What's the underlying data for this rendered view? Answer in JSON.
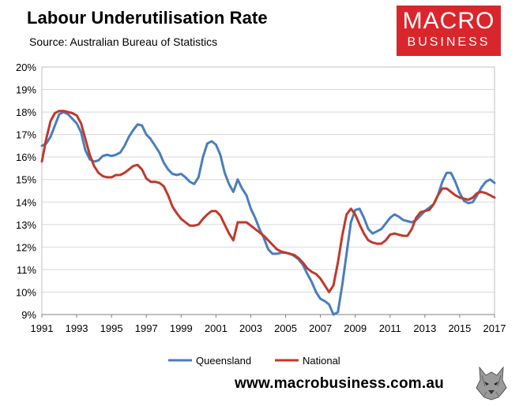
{
  "header": {
    "title": "Labour Underutilisation Rate",
    "source": "Source: Australian Bureau of Statistics"
  },
  "logo": {
    "line1": "MACRO",
    "line2": "BUSINESS",
    "color": "#d9262c"
  },
  "footer": {
    "url": "www.macrobusiness.com.au",
    "mascot_icon": "wolf-icon"
  },
  "chart_data": {
    "type": "line",
    "title": "Labour Underutilisation Rate",
    "xlabel": "",
    "ylabel": "",
    "xlim": [
      1991,
      2017
    ],
    "ylim": [
      9,
      20
    ],
    "y_ticks": [
      "9%",
      "10%",
      "11%",
      "12%",
      "13%",
      "14%",
      "15%",
      "16%",
      "17%",
      "18%",
      "19%",
      "20%"
    ],
    "x_ticks": [
      "1991",
      "1993",
      "1995",
      "1997",
      "1999",
      "2001",
      "2003",
      "2005",
      "2007",
      "2009",
      "2011",
      "2013",
      "2015",
      "2017"
    ],
    "grid": "horizontal",
    "legend": "bottom",
    "series": [
      {
        "name": "Queensland",
        "color": "#4a7ebb",
        "points": [
          [
            1991.0,
            16.5
          ],
          [
            1991.25,
            16.6
          ],
          [
            1991.5,
            16.9
          ],
          [
            1991.75,
            17.4
          ],
          [
            1992.0,
            17.9
          ],
          [
            1992.25,
            18.0
          ],
          [
            1992.5,
            17.9
          ],
          [
            1992.75,
            17.7
          ],
          [
            1993.0,
            17.5
          ],
          [
            1993.25,
            17.1
          ],
          [
            1993.5,
            16.3
          ],
          [
            1993.75,
            15.9
          ],
          [
            1994.0,
            15.8
          ],
          [
            1994.25,
            15.85
          ],
          [
            1994.5,
            16.05
          ],
          [
            1994.75,
            16.1
          ],
          [
            1995.0,
            16.05
          ],
          [
            1995.25,
            16.1
          ],
          [
            1995.5,
            16.2
          ],
          [
            1995.75,
            16.5
          ],
          [
            1996.0,
            16.9
          ],
          [
            1996.25,
            17.2
          ],
          [
            1996.5,
            17.45
          ],
          [
            1996.75,
            17.4
          ],
          [
            1997.0,
            17.0
          ],
          [
            1997.25,
            16.8
          ],
          [
            1997.5,
            16.5
          ],
          [
            1997.75,
            16.2
          ],
          [
            1998.0,
            15.75
          ],
          [
            1998.25,
            15.45
          ],
          [
            1998.5,
            15.25
          ],
          [
            1998.75,
            15.2
          ],
          [
            1999.0,
            15.25
          ],
          [
            1999.25,
            15.1
          ],
          [
            1999.5,
            14.9
          ],
          [
            1999.75,
            14.8
          ],
          [
            2000.0,
            15.1
          ],
          [
            2000.25,
            16.0
          ],
          [
            2000.5,
            16.6
          ],
          [
            2000.75,
            16.7
          ],
          [
            2001.0,
            16.55
          ],
          [
            2001.25,
            16.1
          ],
          [
            2001.5,
            15.3
          ],
          [
            2001.75,
            14.8
          ],
          [
            2002.0,
            14.45
          ],
          [
            2002.25,
            15.0
          ],
          [
            2002.5,
            14.6
          ],
          [
            2002.75,
            14.3
          ],
          [
            2003.0,
            13.7
          ],
          [
            2003.25,
            13.3
          ],
          [
            2003.5,
            12.8
          ],
          [
            2003.75,
            12.4
          ],
          [
            2004.0,
            11.9
          ],
          [
            2004.25,
            11.7
          ],
          [
            2004.5,
            11.7
          ],
          [
            2004.75,
            11.75
          ],
          [
            2005.0,
            11.75
          ],
          [
            2005.25,
            11.7
          ],
          [
            2005.5,
            11.6
          ],
          [
            2005.75,
            11.45
          ],
          [
            2006.0,
            11.2
          ],
          [
            2006.25,
            10.8
          ],
          [
            2006.5,
            10.45
          ],
          [
            2006.75,
            10.0
          ],
          [
            2007.0,
            9.7
          ],
          [
            2007.25,
            9.6
          ],
          [
            2007.5,
            9.45
          ],
          [
            2007.75,
            9.0
          ],
          [
            2008.0,
            9.1
          ],
          [
            2008.25,
            10.3
          ],
          [
            2008.5,
            11.7
          ],
          [
            2008.75,
            13.1
          ],
          [
            2009.0,
            13.65
          ],
          [
            2009.25,
            13.7
          ],
          [
            2009.5,
            13.3
          ],
          [
            2009.75,
            12.8
          ],
          [
            2010.0,
            12.6
          ],
          [
            2010.25,
            12.7
          ],
          [
            2010.5,
            12.8
          ],
          [
            2010.75,
            13.05
          ],
          [
            2011.0,
            13.3
          ],
          [
            2011.25,
            13.45
          ],
          [
            2011.5,
            13.35
          ],
          [
            2011.75,
            13.2
          ],
          [
            2012.0,
            13.15
          ],
          [
            2012.25,
            13.1
          ],
          [
            2012.5,
            13.2
          ],
          [
            2012.75,
            13.4
          ],
          [
            2013.0,
            13.6
          ],
          [
            2013.25,
            13.75
          ],
          [
            2013.5,
            13.9
          ],
          [
            2013.75,
            14.3
          ],
          [
            2014.0,
            14.9
          ],
          [
            2014.25,
            15.3
          ],
          [
            2014.5,
            15.3
          ],
          [
            2014.75,
            14.9
          ],
          [
            2015.0,
            14.4
          ],
          [
            2015.25,
            14.05
          ],
          [
            2015.5,
            13.95
          ],
          [
            2015.75,
            14.0
          ],
          [
            2016.0,
            14.3
          ],
          [
            2016.25,
            14.65
          ],
          [
            2016.5,
            14.9
          ],
          [
            2016.75,
            15.0
          ],
          [
            2017.0,
            14.85
          ]
        ]
      },
      {
        "name": "National",
        "color": "#c0392b",
        "points": [
          [
            1991.0,
            15.8
          ],
          [
            1991.25,
            16.8
          ],
          [
            1991.5,
            17.6
          ],
          [
            1991.75,
            17.95
          ],
          [
            1992.0,
            18.05
          ],
          [
            1992.25,
            18.05
          ],
          [
            1992.5,
            18.0
          ],
          [
            1992.75,
            17.95
          ],
          [
            1993.0,
            17.85
          ],
          [
            1993.25,
            17.5
          ],
          [
            1993.5,
            16.8
          ],
          [
            1993.75,
            16.1
          ],
          [
            1994.0,
            15.6
          ],
          [
            1994.25,
            15.3
          ],
          [
            1994.5,
            15.15
          ],
          [
            1994.75,
            15.1
          ],
          [
            1995.0,
            15.1
          ],
          [
            1995.25,
            15.2
          ],
          [
            1995.5,
            15.2
          ],
          [
            1995.75,
            15.3
          ],
          [
            1996.0,
            15.45
          ],
          [
            1996.25,
            15.6
          ],
          [
            1996.5,
            15.65
          ],
          [
            1996.75,
            15.45
          ],
          [
            1997.0,
            15.05
          ],
          [
            1997.25,
            14.9
          ],
          [
            1997.5,
            14.9
          ],
          [
            1997.75,
            14.85
          ],
          [
            1998.0,
            14.7
          ],
          [
            1998.25,
            14.3
          ],
          [
            1998.5,
            13.8
          ],
          [
            1998.75,
            13.5
          ],
          [
            1999.0,
            13.25
          ],
          [
            1999.25,
            13.1
          ],
          [
            1999.5,
            12.95
          ],
          [
            1999.75,
            12.95
          ],
          [
            2000.0,
            13.0
          ],
          [
            2000.25,
            13.25
          ],
          [
            2000.5,
            13.45
          ],
          [
            2000.75,
            13.6
          ],
          [
            2001.0,
            13.6
          ],
          [
            2001.25,
            13.4
          ],
          [
            2001.5,
            13.0
          ],
          [
            2001.75,
            12.6
          ],
          [
            2002.0,
            12.3
          ],
          [
            2002.25,
            13.1
          ],
          [
            2002.5,
            13.1
          ],
          [
            2002.75,
            13.1
          ],
          [
            2003.0,
            12.95
          ],
          [
            2003.25,
            12.8
          ],
          [
            2003.5,
            12.65
          ],
          [
            2003.75,
            12.5
          ],
          [
            2004.0,
            12.3
          ],
          [
            2004.25,
            12.1
          ],
          [
            2004.5,
            11.9
          ],
          [
            2004.75,
            11.8
          ],
          [
            2005.0,
            11.75
          ],
          [
            2005.25,
            11.7
          ],
          [
            2005.5,
            11.65
          ],
          [
            2005.75,
            11.5
          ],
          [
            2006.0,
            11.3
          ],
          [
            2006.25,
            11.05
          ],
          [
            2006.5,
            10.9
          ],
          [
            2006.75,
            10.8
          ],
          [
            2007.0,
            10.6
          ],
          [
            2007.25,
            10.3
          ],
          [
            2007.5,
            10.0
          ],
          [
            2007.75,
            10.3
          ],
          [
            2008.0,
            11.3
          ],
          [
            2008.25,
            12.5
          ],
          [
            2008.5,
            13.45
          ],
          [
            2008.75,
            13.7
          ],
          [
            2009.0,
            13.45
          ],
          [
            2009.25,
            13.0
          ],
          [
            2009.5,
            12.6
          ],
          [
            2009.75,
            12.3
          ],
          [
            2010.0,
            12.2
          ],
          [
            2010.25,
            12.15
          ],
          [
            2010.5,
            12.15
          ],
          [
            2010.75,
            12.3
          ],
          [
            2011.0,
            12.55
          ],
          [
            2011.25,
            12.6
          ],
          [
            2011.5,
            12.55
          ],
          [
            2011.75,
            12.5
          ],
          [
            2012.0,
            12.5
          ],
          [
            2012.25,
            12.8
          ],
          [
            2012.5,
            13.3
          ],
          [
            2012.75,
            13.55
          ],
          [
            2013.0,
            13.6
          ],
          [
            2013.25,
            13.65
          ],
          [
            2013.5,
            13.9
          ],
          [
            2013.75,
            14.3
          ],
          [
            2014.0,
            14.6
          ],
          [
            2014.25,
            14.6
          ],
          [
            2014.5,
            14.45
          ],
          [
            2014.75,
            14.3
          ],
          [
            2015.0,
            14.2
          ],
          [
            2015.25,
            14.15
          ],
          [
            2015.5,
            14.1
          ],
          [
            2015.75,
            14.2
          ],
          [
            2016.0,
            14.4
          ],
          [
            2016.25,
            14.45
          ],
          [
            2016.5,
            14.4
          ],
          [
            2016.75,
            14.3
          ],
          [
            2017.0,
            14.2
          ]
        ]
      }
    ]
  }
}
